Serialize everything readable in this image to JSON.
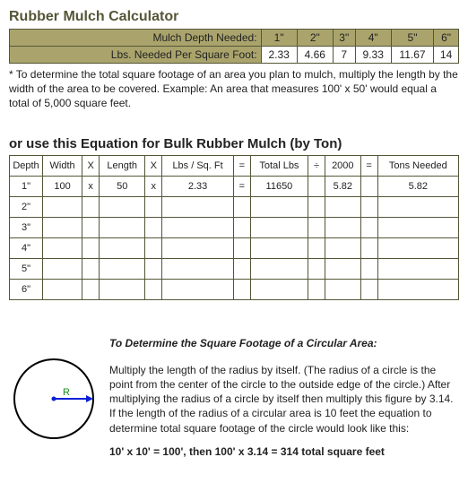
{
  "title": "Rubber Mulch Calculator",
  "depth_table": {
    "row_labels": [
      "Mulch Depth Needed:",
      "Lbs. Needed Per Square Foot:"
    ],
    "depths": [
      "1\"",
      "2\"",
      "3\"",
      "4\"",
      "5\"",
      "6\""
    ],
    "lbs": [
      "2.33",
      "4.66",
      "7",
      "9.33",
      "11.67",
      "14"
    ],
    "header_bg": "#aaa46c",
    "border_color": "#555637"
  },
  "footnote": "* To determine the total square footage of an area you plan to mulch, multiply the length by the width of the area to be covered. Example: An area that measures 100' x 50' would equal a total of 5,000 square feet.",
  "equation_title": "or use this Equation for Bulk Rubber Mulch (by Ton)",
  "calc_table": {
    "headers": [
      "Depth",
      "Width",
      "X",
      "Length",
      "X",
      "Lbs / Sq. Ft",
      "=",
      "Total Lbs",
      "÷",
      "2000",
      "=",
      "Tons Needed"
    ],
    "rows": [
      {
        "depth": "1\"",
        "width": "100",
        "x1": "x",
        "length": "50",
        "x2": "x",
        "lbs": "2.33",
        "eq1": "=",
        "total": "11650",
        "div": "",
        "d2000": "5.82",
        "eq2": "",
        "tons": "5.82"
      },
      {
        "depth": "2\"",
        "width": "",
        "x1": "",
        "length": "",
        "x2": "",
        "lbs": "",
        "eq1": "",
        "total": "",
        "div": "",
        "d2000": "",
        "eq2": "",
        "tons": ""
      },
      {
        "depth": "3\"",
        "width": "",
        "x1": "",
        "length": "",
        "x2": "",
        "lbs": "",
        "eq1": "",
        "total": "",
        "div": "",
        "d2000": "",
        "eq2": "",
        "tons": ""
      },
      {
        "depth": "4\"",
        "width": "",
        "x1": "",
        "length": "",
        "x2": "",
        "lbs": "",
        "eq1": "",
        "total": "",
        "div": "",
        "d2000": "",
        "eq2": "",
        "tons": ""
      },
      {
        "depth": "5\"",
        "width": "",
        "x1": "",
        "length": "",
        "x2": "",
        "lbs": "",
        "eq1": "",
        "total": "",
        "div": "",
        "d2000": "",
        "eq2": "",
        "tons": ""
      },
      {
        "depth": "6\"",
        "width": "",
        "x1": "",
        "length": "",
        "x2": "",
        "lbs": "",
        "eq1": "",
        "total": "",
        "div": "",
        "d2000": "",
        "eq2": "",
        "tons": ""
      }
    ]
  },
  "circle": {
    "title": "To Determine the Square Footage of a Circular Area:",
    "body": "Multiply the length of the radius by itself. (The radius of a circle is the point from the center of the circle to the outside edge of the circle.) After multiplying the radius of a circle by itself then multiply this figure by 3.14. If the length of the radius of a circular area is 10 feet the equation to determine total square footage of the circle would look like this:",
    "equation": "10' x 10' = 100', then 100' x 3.14 = 314 total square feet",
    "radius_label": "R",
    "stroke": "#000000",
    "arrow_color": "#0a1fd6",
    "label_color": "#1a8a1a"
  }
}
